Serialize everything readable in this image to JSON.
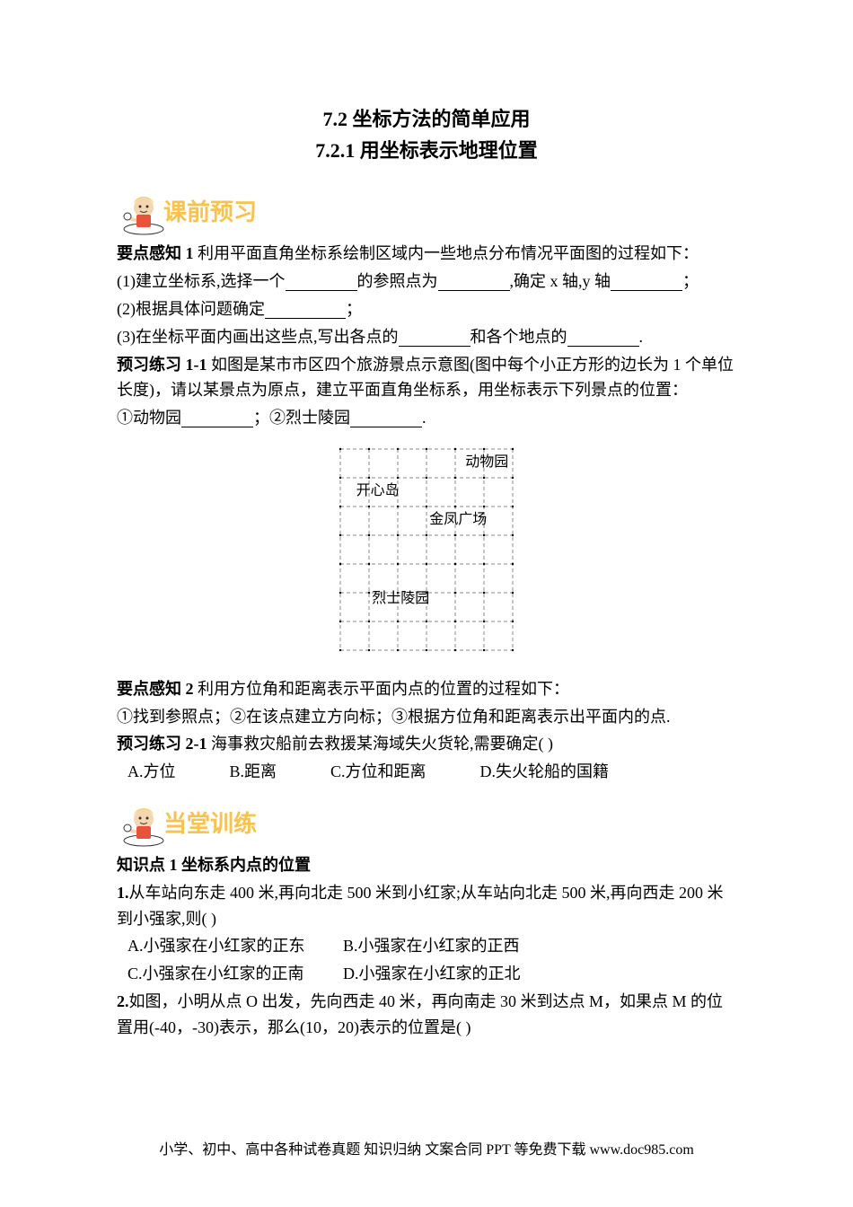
{
  "title": "7.2 坐标方法的简单应用",
  "subtitle": "7.2.1 用坐标表示地理位置",
  "sectionImg1": {
    "label": "课前预习",
    "badgeColor": "#d4a555",
    "boyShirt": "#e8523a",
    "boyHat": "#f0d060",
    "textColor": "#f8c250"
  },
  "sectionImg2": {
    "label": "当堂训练",
    "badgeColor": "#d4a555",
    "boyShirt": "#e8523a",
    "boyHat": "#f0d060",
    "textColor": "#f8c250"
  },
  "point1_label": "要点感知 1",
  "point1_text": " 利用平面直角坐标系绘制区域内一些地点分布情况平面图的过程如下：",
  "point1_sub1_prefix": " (1)建立坐标系,选择一个",
  "point1_sub1_mid1": "的参照点为",
  "point1_sub1_mid2": ",确定 x 轴,y 轴",
  "point1_sub1_end": "；",
  "point1_sub2_prefix": " (2)根据具体问题确定",
  "point1_sub2_end": "；",
  "point1_sub3_prefix": " (3)在坐标平面内画出这些点,写出各点的",
  "point1_sub3_mid": "和各个地点的",
  "point1_sub3_end": ".",
  "exercise1_label": "预习练习 1-1",
  "exercise1_text": " 如图是某市市区四个旅游景点示意图(图中每个小正方形的边长为 1 个单位长度)，请以某景点为原点，建立平面直角坐标系，用坐标表示下列景点的位置：",
  "exercise1_items_prefix": " ①动物园",
  "exercise1_items_mid": "；②烈士陵园",
  "exercise1_items_end": ".",
  "grid": {
    "cols": 6,
    "rows": 7,
    "cellSize": 32,
    "dashColor": "#888888",
    "dotColor": "#000000",
    "labels": {
      "zoo": {
        "text": "动物园",
        "col": 5.1,
        "row": 0.6
      },
      "happy": {
        "text": "开心岛",
        "col": 1.3,
        "row": 1.6
      },
      "plaza": {
        "text": "金凤广场",
        "col": 4.1,
        "row": 2.6
      },
      "cemetery": {
        "text": "烈士陵园",
        "col": 2.1,
        "row": 5.35
      }
    },
    "points": [
      {
        "col": 3,
        "row": 3
      },
      {
        "col": 0,
        "row": 2
      },
      {
        "col": 4,
        "row": 1
      }
    ]
  },
  "point2_label": "要点感知 2",
  "point2_text": " 利用方位角和距离表示平面内点的位置的过程如下：",
  "point2_sub": " ①找到参照点；②在该点建立方向标；③根据方位角和距离表示出平面内的点.",
  "exercise2_label": "预习练习 2-1",
  "exercise2_text": " 海事救灾船前去救援某海域失火货轮,需要确定(    )",
  "exercise2_opts": {
    "a": "A.方位",
    "b": "B.距离",
    "c": "C.方位和距离",
    "d": "D.失火轮船的国籍"
  },
  "knowledge1": "知识点 1 坐标系内点的位置",
  "q1_label": "1.",
  "q1_text": "从车站向东走 400 米,再向北走 500 米到小红家;从车站向北走 500 米,再向西走 200 米到小强家,则(    )",
  "q1_opts": {
    "a": "A.小强家在小红家的正东",
    "b": "B.小强家在小红家的正西",
    "c": "C.小强家在小红家的正南",
    "d": "D.小强家在小红家的正北"
  },
  "q2_label": "2.",
  "q2_text": "如图，小明从点 O 出发，先向西走 40 米，再向南走 30 米到达点 M，如果点 M 的位置用(-40，-30)表示，那么(10，20)表示的位置是(    )",
  "footer": "小学、初中、高中各种试卷真题 知识归纳 文案合同 PPT 等免费下载 www.doc985.com"
}
